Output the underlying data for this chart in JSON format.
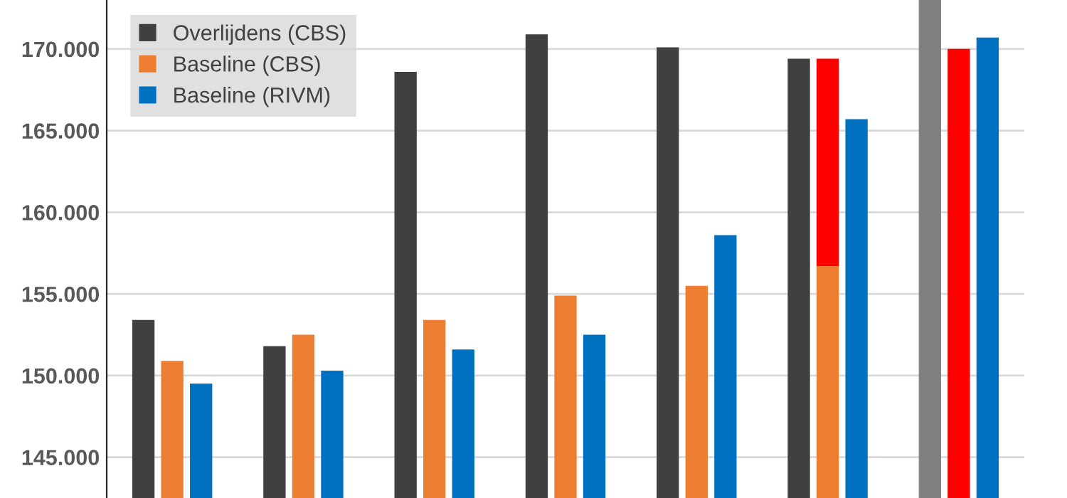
{
  "chart_data": {
    "type": "bar",
    "categories": [
      null,
      null,
      null,
      null,
      null,
      null,
      null
    ],
    "series": [
      {
        "name": "Overlijdens (CBS)",
        "color": "#404040",
        "colors": [
          "#404040",
          "#404040",
          "#404040",
          "#404040",
          "#404040",
          "#404040",
          "#808080"
        ],
        "values": [
          153.4,
          151.8,
          168.6,
          170.9,
          170.1,
          169.4,
          173.0
        ]
      },
      {
        "name": "Baseline (CBS)",
        "color": "#ed7d31",
        "values": [
          150.9,
          152.5,
          153.4,
          154.9,
          155.5,
          156.7,
          null
        ]
      },
      {
        "color": "#ff0000",
        "base": [
          null,
          null,
          null,
          null,
          null,
          156.7,
          null
        ],
        "values": [
          null,
          null,
          null,
          null,
          null,
          12.7,
          170.0
        ]
      },
      {
        "name": "Baseline (RIVM)",
        "color": "#0070c0",
        "values": [
          149.5,
          150.3,
          151.6,
          152.5,
          158.6,
          165.7,
          170.7
        ]
      }
    ],
    "ylim": [
      142.5,
      173.0
    ],
    "yticks": [
      {
        "value": 145,
        "label": "145.000"
      },
      {
        "value": 150,
        "label": "150.000"
      },
      {
        "value": 155,
        "label": "155.000"
      },
      {
        "value": 160,
        "label": "160.000"
      },
      {
        "value": 165,
        "label": "165.000"
      },
      {
        "value": 170,
        "label": "170.000"
      }
    ],
    "grid": "y",
    "legend": "top left"
  }
}
